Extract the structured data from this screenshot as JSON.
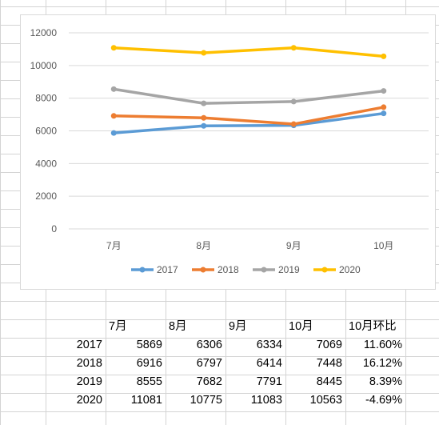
{
  "chart_data": {
    "type": "line",
    "categories": [
      "7月",
      "8月",
      "9月",
      "10月"
    ],
    "series": [
      {
        "name": "2017",
        "values": [
          5869,
          6306,
          6334,
          7069
        ],
        "color": "#5b9bd5"
      },
      {
        "name": "2018",
        "values": [
          6916,
          6797,
          6414,
          7448
        ],
        "color": "#ed7d31"
      },
      {
        "name": "2019",
        "values": [
          8555,
          7682,
          7791,
          8445
        ],
        "color": "#a5a5a5"
      },
      {
        "name": "2020",
        "values": [
          11081,
          10775,
          11083,
          10563
        ],
        "color": "#ffc000"
      }
    ],
    "yticks": [
      "0",
      "2000",
      "4000",
      "6000",
      "8000",
      "10000",
      "12000"
    ],
    "ylim": [
      0,
      12000
    ],
    "grid": true,
    "legend": "bottom"
  },
  "table": {
    "headers": [
      "7月",
      "8月",
      "9月",
      "10月",
      "10月环比"
    ],
    "rows": [
      {
        "year": "2017",
        "cells": [
          "5869",
          "6306",
          "6334",
          "7069",
          "11.60%"
        ]
      },
      {
        "year": "2018",
        "cells": [
          "6916",
          "6797",
          "6414",
          "7448",
          "16.12%"
        ]
      },
      {
        "year": "2019",
        "cells": [
          "8555",
          "7682",
          "7791",
          "8445",
          "8.39%"
        ]
      },
      {
        "year": "2020",
        "cells": [
          "11081",
          "10775",
          "11083",
          "10563",
          "-4.69%"
        ]
      }
    ]
  }
}
